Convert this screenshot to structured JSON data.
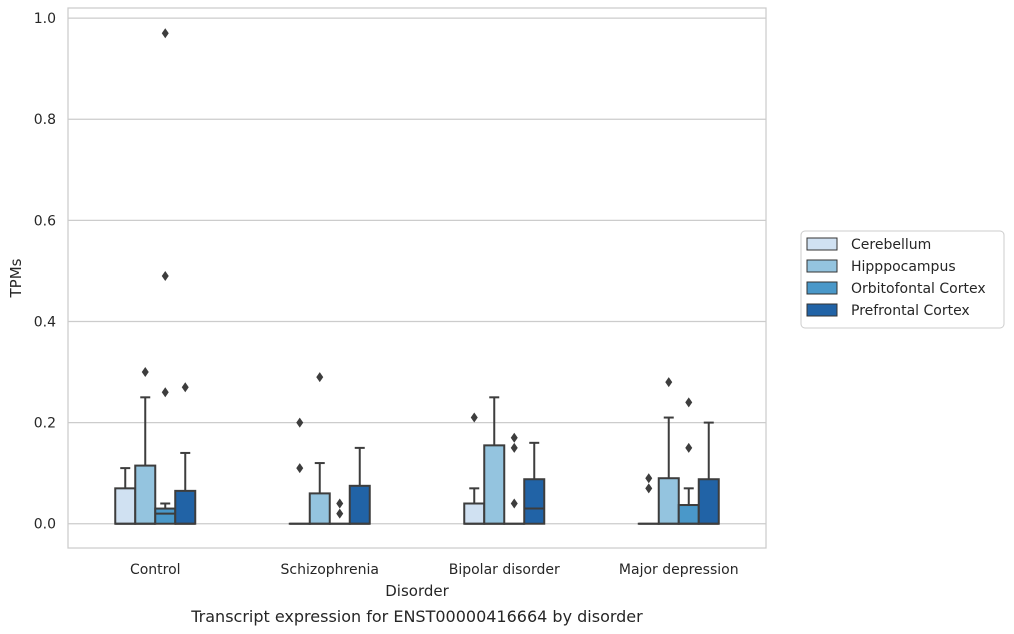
{
  "chart_data": {
    "type": "box",
    "title": "",
    "caption": "Transcript expression for ENST00000416664 by disorder",
    "xlabel": "Disorder",
    "ylabel": "TPMs",
    "ylim": [
      -0.048,
      1.02
    ],
    "yticks": [
      0.0,
      0.2,
      0.4,
      0.6,
      0.8,
      1.0
    ],
    "ytick_labels": [
      "0.0",
      "0.2",
      "0.4",
      "0.6",
      "0.8",
      "1.0"
    ],
    "grid": "horizontal",
    "legend_placement": "right",
    "categories": [
      "Control",
      "Schizophrenia",
      "Bipolar disorder",
      "Major depression"
    ],
    "series": [
      {
        "name": "Cerebellum",
        "color": "#d0e1f2",
        "boxes": [
          {
            "q1": 0.0,
            "median": 0.0,
            "q3": 0.07,
            "whisker_low": 0.0,
            "whisker_high": 0.11,
            "outliers": []
          },
          {
            "q1": 0.0,
            "median": 0.0,
            "q3": 0.0,
            "whisker_low": 0.0,
            "whisker_high": 0.0,
            "outliers": [
              0.11,
              0.2
            ]
          },
          {
            "q1": 0.0,
            "median": 0.0,
            "q3": 0.04,
            "whisker_low": 0.0,
            "whisker_high": 0.07,
            "outliers": [
              0.21
            ]
          },
          {
            "q1": 0.0,
            "median": 0.0,
            "q3": 0.0,
            "whisker_low": 0.0,
            "whisker_high": 0.0,
            "outliers": [
              0.07,
              0.09
            ]
          }
        ]
      },
      {
        "name": "Hipppocampus",
        "color": "#94c4df",
        "boxes": [
          {
            "q1": 0.0,
            "median": 0.0,
            "q3": 0.115,
            "whisker_low": 0.0,
            "whisker_high": 0.25,
            "outliers": [
              0.3
            ]
          },
          {
            "q1": 0.0,
            "median": 0.0,
            "q3": 0.06,
            "whisker_low": 0.0,
            "whisker_high": 0.12,
            "outliers": [
              0.29
            ]
          },
          {
            "q1": 0.0,
            "median": 0.0,
            "q3": 0.155,
            "whisker_low": 0.0,
            "whisker_high": 0.25,
            "outliers": []
          },
          {
            "q1": 0.0,
            "median": 0.0,
            "q3": 0.09,
            "whisker_low": 0.0,
            "whisker_high": 0.21,
            "outliers": [
              0.28
            ]
          }
        ]
      },
      {
        "name": "Orbitofontal Cortex",
        "color": "#4a98c9",
        "boxes": [
          {
            "q1": 0.0,
            "median": 0.02,
            "q3": 0.03,
            "whisker_low": 0.0,
            "whisker_high": 0.04,
            "outliers": [
              0.26,
              0.49,
              0.97
            ]
          },
          {
            "q1": 0.0,
            "median": 0.0,
            "q3": 0.0,
            "whisker_low": 0.0,
            "whisker_high": 0.0,
            "outliers": [
              0.02,
              0.04
            ]
          },
          {
            "q1": 0.0,
            "median": 0.0,
            "q3": 0.0,
            "whisker_low": 0.0,
            "whisker_high": 0.0,
            "outliers": [
              0.04,
              0.15,
              0.17
            ]
          },
          {
            "q1": 0.0,
            "median": 0.0,
            "q3": 0.037,
            "whisker_low": 0.0,
            "whisker_high": 0.07,
            "outliers": [
              0.15,
              0.24
            ]
          }
        ]
      },
      {
        "name": "Prefrontal Cortex",
        "color": "#2163a6",
        "boxes": [
          {
            "q1": 0.0,
            "median": 0.0,
            "q3": 0.065,
            "whisker_low": 0.0,
            "whisker_high": 0.14,
            "outliers": [
              0.27
            ]
          },
          {
            "q1": 0.0,
            "median": 0.0,
            "q3": 0.075,
            "whisker_low": 0.0,
            "whisker_high": 0.15,
            "outliers": []
          },
          {
            "q1": 0.0,
            "median": 0.03,
            "q3": 0.088,
            "whisker_low": 0.0,
            "whisker_high": 0.16,
            "outliers": []
          },
          {
            "q1": 0.0,
            "median": 0.0,
            "q3": 0.088,
            "whisker_low": 0.0,
            "whisker_high": 0.2,
            "outliers": []
          }
        ]
      }
    ]
  }
}
